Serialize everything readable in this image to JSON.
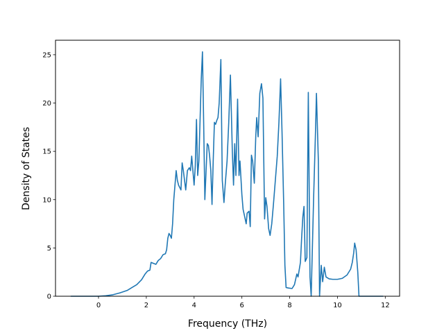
{
  "chart_data": {
    "type": "line",
    "title": "",
    "xlabel": "Frequency (THz)",
    "ylabel": "Density of States",
    "xlim": [
      -1.8,
      12.6
    ],
    "ylim": [
      0,
      26.5
    ],
    "xticks": [
      0,
      2,
      4,
      6,
      8,
      10,
      12
    ],
    "yticks": [
      0,
      5,
      10,
      15,
      20,
      25
    ],
    "grid": false,
    "legend": "none",
    "series": [
      {
        "color": "#1f77b4",
        "points": [
          [
            -1.15,
            0
          ],
          [
            -0.6,
            0
          ],
          [
            0,
            0
          ],
          [
            0.3,
            0.05
          ],
          [
            0.6,
            0.15
          ],
          [
            0.9,
            0.35
          ],
          [
            1.2,
            0.6
          ],
          [
            1.4,
            0.9
          ],
          [
            1.6,
            1.2
          ],
          [
            1.8,
            1.7
          ],
          [
            1.95,
            2.3
          ],
          [
            2.05,
            2.6
          ],
          [
            2.15,
            2.7
          ],
          [
            2.2,
            3.5
          ],
          [
            2.3,
            3.4
          ],
          [
            2.4,
            3.3
          ],
          [
            2.5,
            3.7
          ],
          [
            2.6,
            3.9
          ],
          [
            2.7,
            4.3
          ],
          [
            2.8,
            4.4
          ],
          [
            2.85,
            4.8
          ],
          [
            2.9,
            6.0
          ],
          [
            2.95,
            6.5
          ],
          [
            3.0,
            6.3
          ],
          [
            3.05,
            6.0
          ],
          [
            3.1,
            7.5
          ],
          [
            3.15,
            10.0
          ],
          [
            3.2,
            11.5
          ],
          [
            3.25,
            13.0
          ],
          [
            3.3,
            12.0
          ],
          [
            3.35,
            11.5
          ],
          [
            3.45,
            11.0
          ],
          [
            3.5,
            13.8
          ],
          [
            3.55,
            13.0
          ],
          [
            3.65,
            11.0
          ],
          [
            3.72,
            13.0
          ],
          [
            3.8,
            13.3
          ],
          [
            3.85,
            13.0
          ],
          [
            3.9,
            14.5
          ],
          [
            4.0,
            11.5
          ],
          [
            4.05,
            13.5
          ],
          [
            4.1,
            18.3
          ],
          [
            4.15,
            12.5
          ],
          [
            4.2,
            14.0
          ],
          [
            4.3,
            22.5
          ],
          [
            4.35,
            25.3
          ],
          [
            4.4,
            18.0
          ],
          [
            4.45,
            10.0
          ],
          [
            4.55,
            15.8
          ],
          [
            4.6,
            15.6
          ],
          [
            4.65,
            14.5
          ],
          [
            4.7,
            13.0
          ],
          [
            4.75,
            9.5
          ],
          [
            4.8,
            14.0
          ],
          [
            4.85,
            18.0
          ],
          [
            4.9,
            17.8
          ],
          [
            4.95,
            18.2
          ],
          [
            5.0,
            18.5
          ],
          [
            5.05,
            20.0
          ],
          [
            5.12,
            24.5
          ],
          [
            5.18,
            12.0
          ],
          [
            5.25,
            9.7
          ],
          [
            5.3,
            11.5
          ],
          [
            5.38,
            14.0
          ],
          [
            5.45,
            18.0
          ],
          [
            5.52,
            22.9
          ],
          [
            5.6,
            15.0
          ],
          [
            5.65,
            11.5
          ],
          [
            5.7,
            15.8
          ],
          [
            5.75,
            12.5
          ],
          [
            5.82,
            20.4
          ],
          [
            5.88,
            12.5
          ],
          [
            5.92,
            14.0
          ],
          [
            6.0,
            10.5
          ],
          [
            6.05,
            9.0
          ],
          [
            6.12,
            8.2
          ],
          [
            6.18,
            7.5
          ],
          [
            6.22,
            8.6
          ],
          [
            6.3,
            8.8
          ],
          [
            6.35,
            7.2
          ],
          [
            6.4,
            14.6
          ],
          [
            6.45,
            14.0
          ],
          [
            6.52,
            11.7
          ],
          [
            6.58,
            16.5
          ],
          [
            6.62,
            18.5
          ],
          [
            6.68,
            16.5
          ],
          [
            6.75,
            21.0
          ],
          [
            6.82,
            22.0
          ],
          [
            6.88,
            20.5
          ],
          [
            6.95,
            8.0
          ],
          [
            7.0,
            10.2
          ],
          [
            7.05,
            9.3
          ],
          [
            7.12,
            7.0
          ],
          [
            7.18,
            6.3
          ],
          [
            7.25,
            7.5
          ],
          [
            7.32,
            9.5
          ],
          [
            7.4,
            12.0
          ],
          [
            7.48,
            14.5
          ],
          [
            7.55,
            18.0
          ],
          [
            7.62,
            22.5
          ],
          [
            7.68,
            17.0
          ],
          [
            7.75,
            9.5
          ],
          [
            7.8,
            3.2
          ],
          [
            7.85,
            0.9
          ],
          [
            7.95,
            0.85
          ],
          [
            8.1,
            0.8
          ],
          [
            8.2,
            1.2
          ],
          [
            8.3,
            2.3
          ],
          [
            8.35,
            2.0
          ],
          [
            8.45,
            3.5
          ],
          [
            8.5,
            6.0
          ],
          [
            8.55,
            8.2
          ],
          [
            8.6,
            9.3
          ],
          [
            8.65,
            3.6
          ],
          [
            8.72,
            4.0
          ],
          [
            8.78,
            21.1
          ],
          [
            8.85,
            2.0
          ],
          [
            8.9,
            0
          ],
          [
            9.0,
            10.0
          ],
          [
            9.08,
            17.0
          ],
          [
            9.12,
            21.0
          ],
          [
            9.2,
            14.0
          ],
          [
            9.25,
            0
          ],
          [
            9.32,
            3.2
          ],
          [
            9.38,
            1.5
          ],
          [
            9.45,
            3.0
          ],
          [
            9.52,
            2.0
          ],
          [
            9.65,
            1.8
          ],
          [
            9.8,
            1.75
          ],
          [
            10.0,
            1.75
          ],
          [
            10.2,
            1.85
          ],
          [
            10.4,
            2.2
          ],
          [
            10.55,
            2.8
          ],
          [
            10.62,
            3.5
          ],
          [
            10.68,
            4.5
          ],
          [
            10.72,
            5.5
          ],
          [
            10.78,
            4.8
          ],
          [
            10.85,
            2.5
          ],
          [
            10.9,
            0
          ],
          [
            11.3,
            0
          ],
          [
            11.9,
            0
          ]
        ]
      }
    ]
  }
}
